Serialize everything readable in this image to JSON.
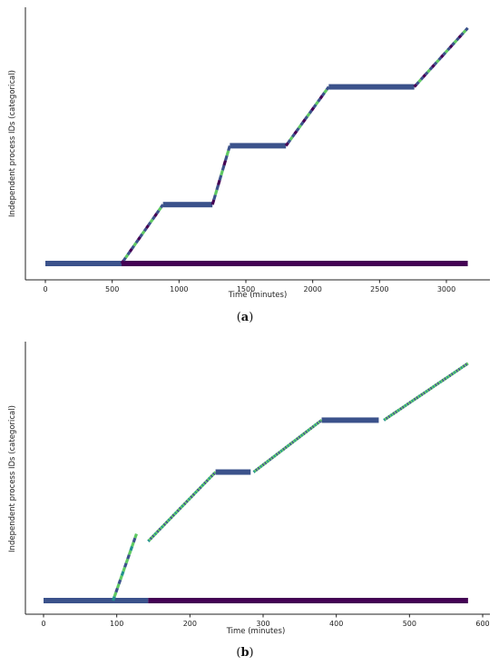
{
  "colors": {
    "axis": "#222222",
    "base_bar": "#3b528b",
    "long_bar": "#440154",
    "stripe": "#5ec962",
    "teal": "#21918c"
  },
  "chart_data": [
    {
      "id": "a",
      "panel_label": "(a)",
      "panel_letter": "a",
      "type": "timeline",
      "xlabel": "Time (minutes)",
      "ylabel": "Independent process IDs (categorical)",
      "xlim": [
        -120,
        3250
      ],
      "xticks": [
        0,
        500,
        1000,
        1500,
        2000,
        2500,
        3000
      ],
      "segments": [
        {
          "kind": "bar",
          "x0": 0,
          "x1": 570,
          "level": 0.0,
          "color": "base"
        },
        {
          "kind": "bar",
          "x0": 570,
          "x1": 3160,
          "level": 0.0,
          "color": "long"
        },
        {
          "kind": "ramp",
          "x0": 570,
          "x1": 880,
          "y0": 0.0,
          "y1": 0.24,
          "steps": 10
        },
        {
          "kind": "bar",
          "x0": 880,
          "x1": 1250,
          "level": 0.24,
          "color": "base"
        },
        {
          "kind": "ramp",
          "x0": 1250,
          "x1": 1380,
          "y0": 0.24,
          "y1": 0.48,
          "steps": 6
        },
        {
          "kind": "bar",
          "x0": 1380,
          "x1": 1800,
          "level": 0.48,
          "color": "base"
        },
        {
          "kind": "ramp",
          "x0": 1800,
          "x1": 2120,
          "y0": 0.48,
          "y1": 0.72,
          "steps": 10
        },
        {
          "kind": "bar",
          "x0": 2120,
          "x1": 2760,
          "level": 0.72,
          "color": "base"
        },
        {
          "kind": "ramp",
          "x0": 2760,
          "x1": 3160,
          "y0": 0.72,
          "y1": 0.96,
          "steps": 12
        }
      ]
    },
    {
      "id": "b",
      "panel_label": "(b)",
      "panel_letter": "b",
      "type": "timeline",
      "xlabel": "Time (minutes)",
      "ylabel": "Independent process IDs (categorical)",
      "xlim": [
        -10,
        602
      ],
      "xticks": [
        0,
        100,
        200,
        300,
        400,
        500,
        600
      ],
      "segments": [
        {
          "kind": "bar",
          "x0": 0,
          "x1": 143,
          "level": 0.0,
          "color": "base"
        },
        {
          "kind": "bar",
          "x0": 143,
          "x1": 580,
          "level": 0.0,
          "color": "long"
        },
        {
          "kind": "ramp",
          "x0": 95,
          "x1": 127,
          "y0": 0.0,
          "y1": 0.27,
          "steps": 8
        },
        {
          "kind": "ramp",
          "x0": 143,
          "x1": 235,
          "y0": 0.24,
          "y1": 0.52,
          "steps": 30
        },
        {
          "kind": "bar",
          "x0": 235,
          "x1": 283,
          "level": 0.52,
          "color": "base"
        },
        {
          "kind": "ramp",
          "x0": 287,
          "x1": 380,
          "y0": 0.52,
          "y1": 0.73,
          "steps": 30
        },
        {
          "kind": "bar",
          "x0": 380,
          "x1": 458,
          "level": 0.73,
          "color": "base"
        },
        {
          "kind": "ramp",
          "x0": 465,
          "x1": 580,
          "y0": 0.73,
          "y1": 0.96,
          "steps": 36
        }
      ]
    }
  ]
}
